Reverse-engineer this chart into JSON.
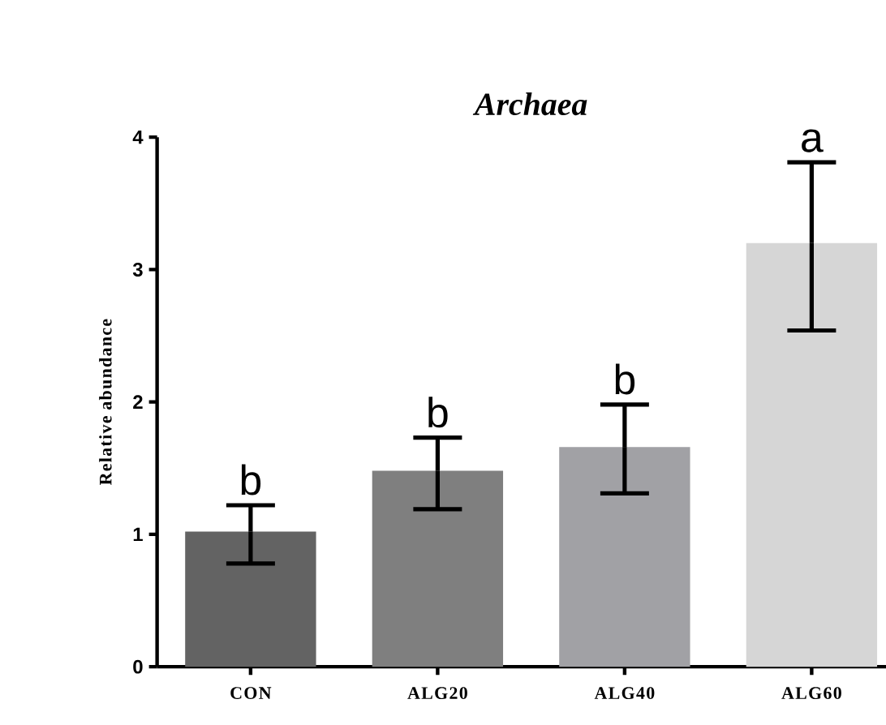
{
  "chart_data": {
    "type": "bar",
    "title": "Archaea",
    "ylabel": "Relative abundance",
    "categories": [
      "CON",
      "ALG20",
      "ALG40",
      "ALG60"
    ],
    "values": [
      1.02,
      1.48,
      1.66,
      3.2
    ],
    "colors": [
      "#636363",
      "#7f7f7f",
      "#a1a1a5",
      "#d6d6d6"
    ],
    "errors": [
      [
        0.78,
        1.22
      ],
      [
        1.19,
        1.73
      ],
      [
        1.31,
        1.98
      ],
      [
        2.54,
        3.81
      ]
    ],
    "ylim": [
      0,
      4
    ],
    "yticks": [
      0,
      1,
      2,
      3,
      4
    ],
    "annotations": [
      {
        "text": "b",
        "x": "CON",
        "y": 1.22
      },
      {
        "text": "b",
        "x": "ALG20",
        "y": 1.73
      },
      {
        "text": "b",
        "x": "ALG40",
        "y": 1.98
      },
      {
        "text": "a",
        "x": "ALG60",
        "y": 3.81
      }
    ]
  }
}
